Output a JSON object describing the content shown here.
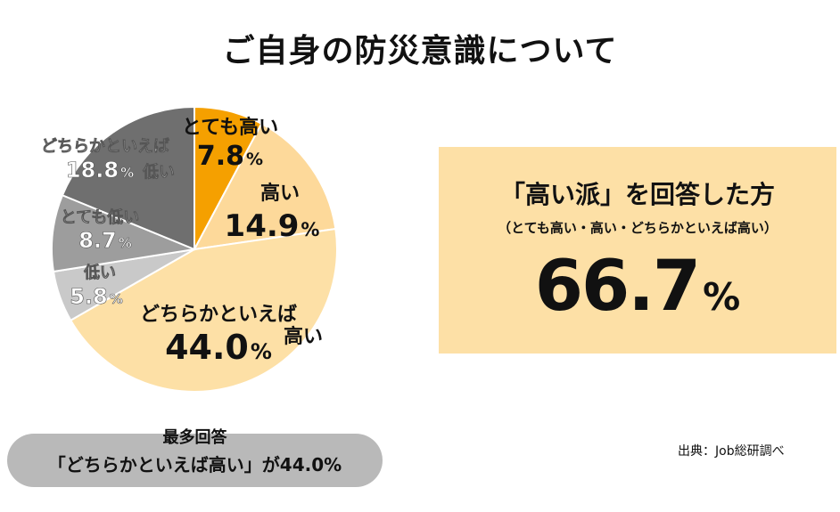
{
  "title": "ご自身の防災意識について",
  "chart_data": {
    "type": "pie",
    "start_angle_deg": 0,
    "direction": "clockwise",
    "unit": "%",
    "slices": [
      {
        "label": "とても高い",
        "value": 7.8,
        "display": "7.8",
        "color": "#f5a000",
        "label_color": "#111111"
      },
      {
        "label": "高い",
        "value": 14.9,
        "display": "14.9",
        "color": "#fdd99a",
        "label_color": "#111111"
      },
      {
        "label": "どちらかといえば高い",
        "value": 44.0,
        "display": "44.0",
        "color": "#fde0a6",
        "label_color": "#111111"
      },
      {
        "label": "低い",
        "value": 5.8,
        "display": "5.8",
        "color": "#c9c9c9",
        "label_color": "#ffffff"
      },
      {
        "label": "とても低い",
        "value": 8.7,
        "display": "8.7",
        "color": "#9d9d9d",
        "label_color": "#ffffff"
      },
      {
        "label": "どちらかといえば低い",
        "value": 18.8,
        "display": "18.8",
        "color": "#6f6f6f",
        "label_color": "#ffffff"
      }
    ]
  },
  "summary": {
    "heading": "「高い派」を回答した方",
    "sub": "（とても高い・高い・どちらかといえば高い）",
    "value": "66.7",
    "unit": "%"
  },
  "top_answer": {
    "heading": "最多回答",
    "text": "「どちらかといえば高い」が44.0%"
  },
  "source": "出典：Job総研調べ",
  "colors": {
    "accent": "#f5a000",
    "summary_bg": "#fde0a6",
    "pill_bg": "#b9b9b9"
  }
}
